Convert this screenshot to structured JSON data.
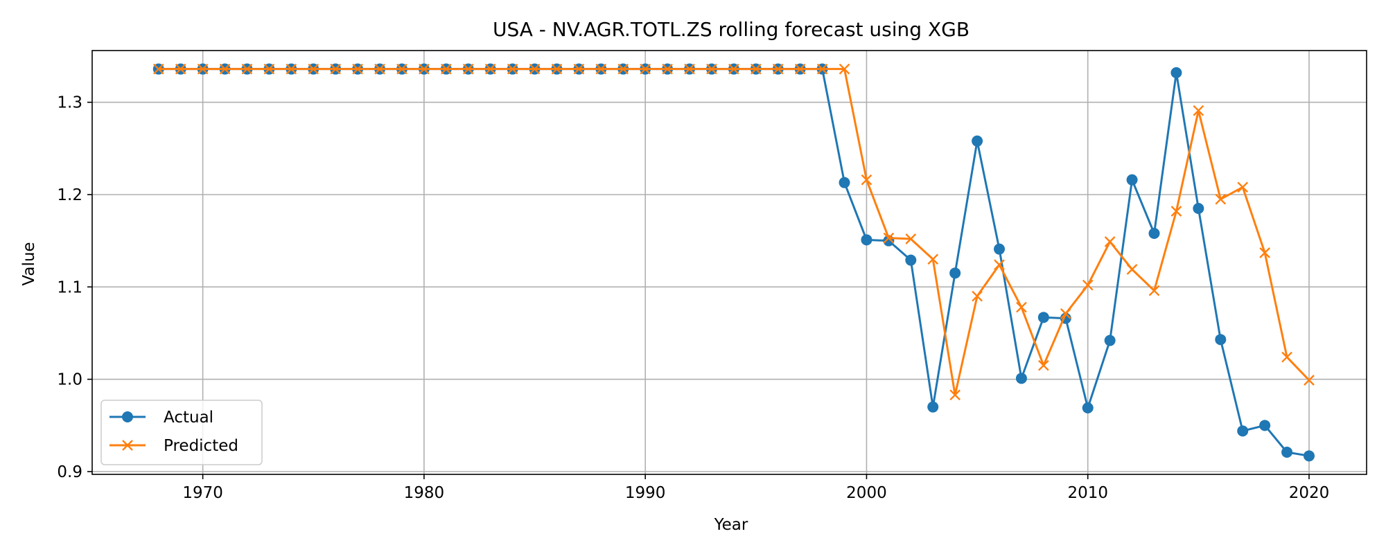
{
  "chart_data": {
    "type": "line",
    "title": "USA - NV.AGR.TOTL.ZS rolling forecast using XGB",
    "xlabel": "Year",
    "ylabel": "Value",
    "xlim": [
      1965,
      2022.6
    ],
    "ylim": [
      0.897,
      1.356
    ],
    "x_ticks": [
      1970,
      1980,
      1990,
      2000,
      2010,
      2020
    ],
    "x_tick_labels": [
      "1970",
      "1980",
      "1990",
      "2000",
      "2010",
      "2020"
    ],
    "y_ticks": [
      0.9,
      1.0,
      1.1,
      1.2,
      1.3
    ],
    "y_tick_labels": [
      "0.9",
      "1.0",
      "1.1",
      "1.2",
      "1.3"
    ],
    "grid": true,
    "legend_position": "lower left",
    "series": [
      {
        "name": "Actual",
        "color": "#1f77b4",
        "marker": "circle",
        "x": [
          1968,
          1969,
          1970,
          1971,
          1972,
          1973,
          1974,
          1975,
          1976,
          1977,
          1978,
          1979,
          1980,
          1981,
          1982,
          1983,
          1984,
          1985,
          1986,
          1987,
          1988,
          1989,
          1990,
          1991,
          1992,
          1993,
          1994,
          1995,
          1996,
          1997,
          1998,
          1999,
          2000,
          2001,
          2002,
          2003,
          2004,
          2005,
          2006,
          2007,
          2008,
          2009,
          2010,
          2011,
          2012,
          2013,
          2014,
          2015,
          2016,
          2017,
          2018,
          2019,
          2020
        ],
        "values": [
          1.336,
          1.336,
          1.336,
          1.336,
          1.336,
          1.336,
          1.336,
          1.336,
          1.336,
          1.336,
          1.336,
          1.336,
          1.336,
          1.336,
          1.336,
          1.336,
          1.336,
          1.336,
          1.336,
          1.336,
          1.336,
          1.336,
          1.336,
          1.336,
          1.336,
          1.336,
          1.336,
          1.336,
          1.336,
          1.336,
          1.336,
          1.213,
          1.151,
          1.15,
          1.129,
          0.97,
          1.115,
          1.258,
          1.141,
          1.001,
          1.067,
          1.066,
          0.969,
          1.042,
          1.216,
          1.158,
          1.332,
          1.185,
          1.043,
          0.944,
          0.95,
          0.921,
          0.917
        ]
      },
      {
        "name": "Predicted",
        "color": "#ff7f0e",
        "marker": "x",
        "x": [
          1968,
          1969,
          1970,
          1971,
          1972,
          1973,
          1974,
          1975,
          1976,
          1977,
          1978,
          1979,
          1980,
          1981,
          1982,
          1983,
          1984,
          1985,
          1986,
          1987,
          1988,
          1989,
          1990,
          1991,
          1992,
          1993,
          1994,
          1995,
          1996,
          1997,
          1998,
          1999,
          2000,
          2001,
          2002,
          2003,
          2004,
          2005,
          2006,
          2007,
          2008,
          2009,
          2010,
          2011,
          2012,
          2013,
          2014,
          2015,
          2016,
          2017,
          2018,
          2019,
          2020
        ],
        "values": [
          1.336,
          1.336,
          1.336,
          1.336,
          1.336,
          1.336,
          1.336,
          1.336,
          1.336,
          1.336,
          1.336,
          1.336,
          1.336,
          1.336,
          1.336,
          1.336,
          1.336,
          1.336,
          1.336,
          1.336,
          1.336,
          1.336,
          1.336,
          1.336,
          1.336,
          1.336,
          1.336,
          1.336,
          1.336,
          1.336,
          1.336,
          1.336,
          1.216,
          1.153,
          1.152,
          1.13,
          0.983,
          1.09,
          1.124,
          1.078,
          1.015,
          1.071,
          1.102,
          1.149,
          1.119,
          1.096,
          1.182,
          1.291,
          1.195,
          1.208,
          1.137,
          1.024,
          0.999
        ]
      }
    ]
  }
}
